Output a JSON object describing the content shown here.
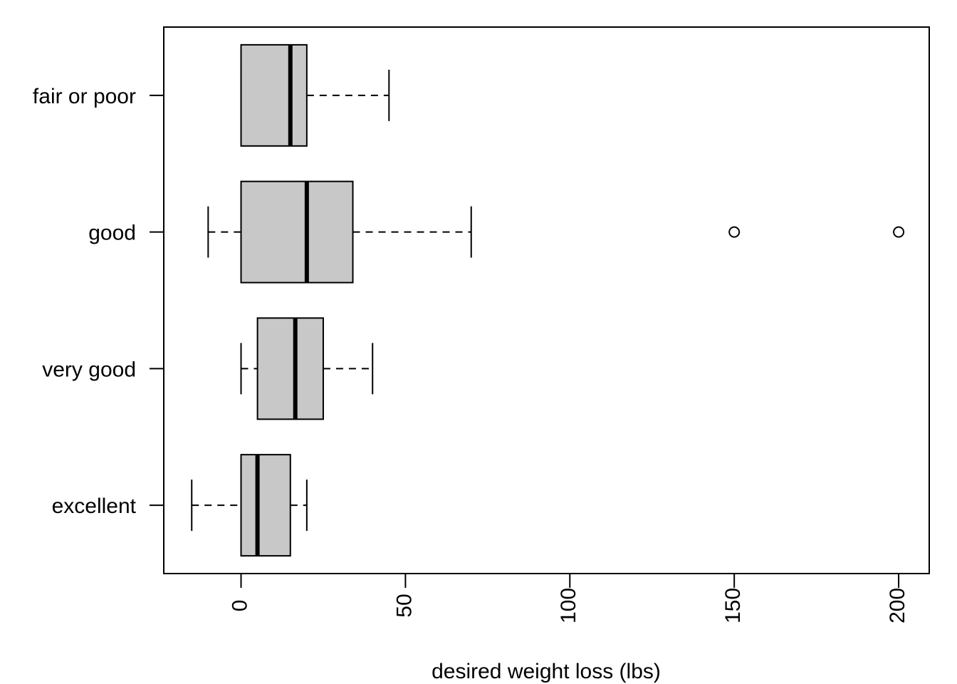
{
  "chart_data": {
    "type": "boxplot",
    "orientation": "horizontal",
    "title": "",
    "xlabel": "desired weight loss (lbs)",
    "ylabel": "",
    "xlim": [
      -23.5,
      209.3
    ],
    "x_ticks": [
      0,
      50,
      100,
      150,
      200
    ],
    "x_tick_labels": [
      "0",
      "50",
      "100",
      "150",
      "200"
    ],
    "categories": [
      "excellent",
      "very good",
      "good",
      "fair or poor"
    ],
    "boxes": [
      {
        "category": "excellent",
        "whisker_low": -15,
        "q1": 0,
        "median": 5,
        "q3": 15,
        "whisker_high": 20,
        "outliers": []
      },
      {
        "category": "very good",
        "whisker_low": 0,
        "q1": 5,
        "median": 16.5,
        "q3": 25,
        "whisker_high": 40,
        "outliers": []
      },
      {
        "category": "good",
        "whisker_low": -10,
        "q1": 0,
        "median": 20,
        "q3": 34,
        "whisker_high": 70,
        "outliers": [
          150,
          200
        ]
      },
      {
        "category": "fair or poor",
        "whisker_low": 0,
        "q1": 0,
        "median": 15,
        "q3": 20,
        "whisker_high": 45,
        "outliers": []
      }
    ],
    "box_fill": "#c8c8c8",
    "line_color": "#000000",
    "grid": false,
    "legend": "none"
  }
}
